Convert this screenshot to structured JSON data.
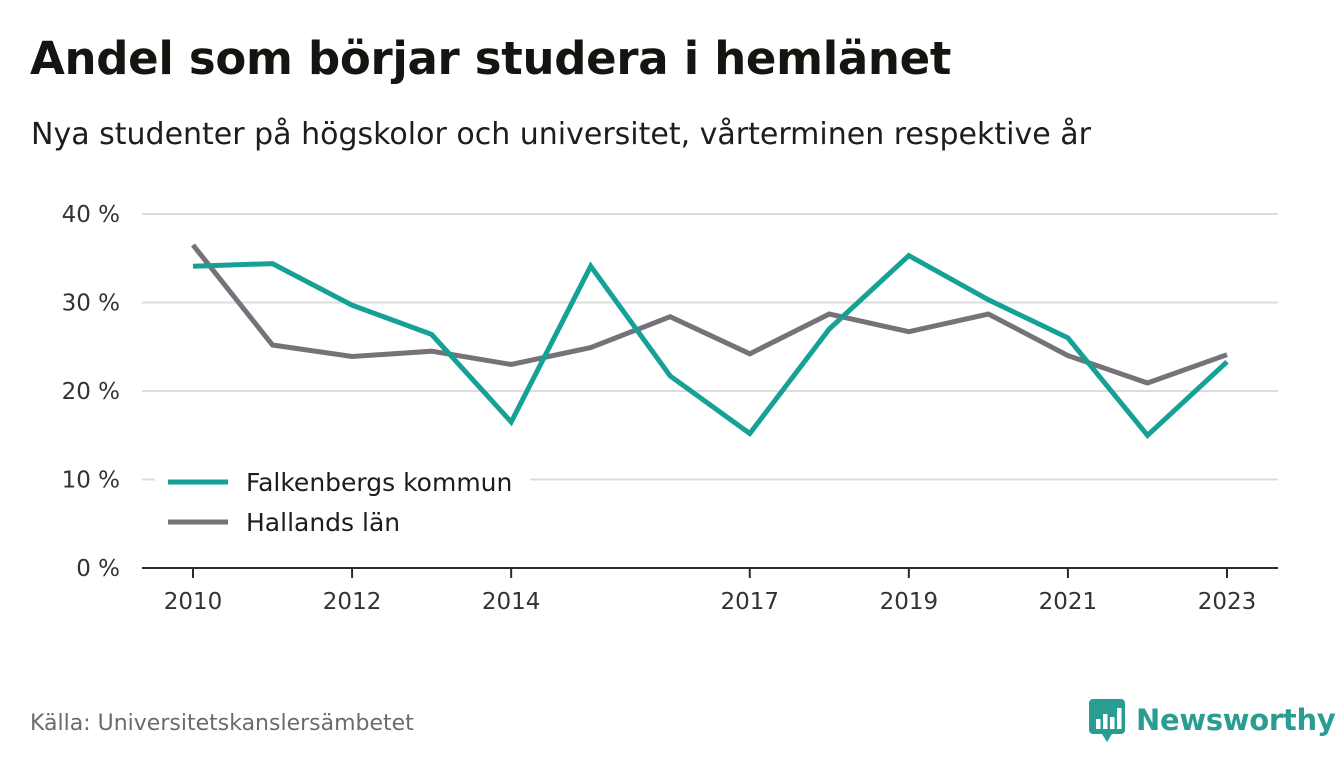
{
  "title": "Andel som börjar studera i hemlänet",
  "subtitle": "Nya studenter på högskolor och universitet, vårterminen respektive år",
  "source": "Källa: Universitetskanslersämbetet",
  "brand": {
    "name": "Newsworthy",
    "icon": "newsworthy-logo-icon",
    "color": "#2a9d93"
  },
  "chart_data": {
    "type": "line",
    "title": "Andel som börjar studera i hemlänet",
    "subtitle": "Nya studenter på högskolor och universitet, vårterminen respektive år",
    "x": [
      2010,
      2011,
      2012,
      2013,
      2014,
      2015,
      2016,
      2017,
      2018,
      2019,
      2020,
      2021,
      2022,
      2023
    ],
    "x_tick_labels": [
      "2010",
      "2012",
      "2014",
      "2017",
      "2019",
      "2021",
      "2023"
    ],
    "y_ticks": [
      0,
      10,
      20,
      30,
      40
    ],
    "y_tick_labels": [
      "0 %",
      "10 %",
      "20 %",
      "30 %",
      "40 %"
    ],
    "ylim": [
      0,
      40
    ],
    "grid": true,
    "legend_position": "bottom-left",
    "series": [
      {
        "name": "Falkenbergs kommun",
        "color": "#16a196",
        "values": [
          34.1,
          34.4,
          29.7,
          26.4,
          16.5,
          34.1,
          21.7,
          15.2,
          27.0,
          35.3,
          30.3,
          26.0,
          15.0,
          23.3
        ]
      },
      {
        "name": "Hallands län",
        "color": "#757279",
        "values": [
          36.5,
          25.2,
          23.9,
          24.5,
          23.0,
          24.9,
          28.4,
          24.2,
          28.7,
          26.7,
          28.7,
          24.0,
          20.9,
          24.1
        ]
      }
    ]
  }
}
